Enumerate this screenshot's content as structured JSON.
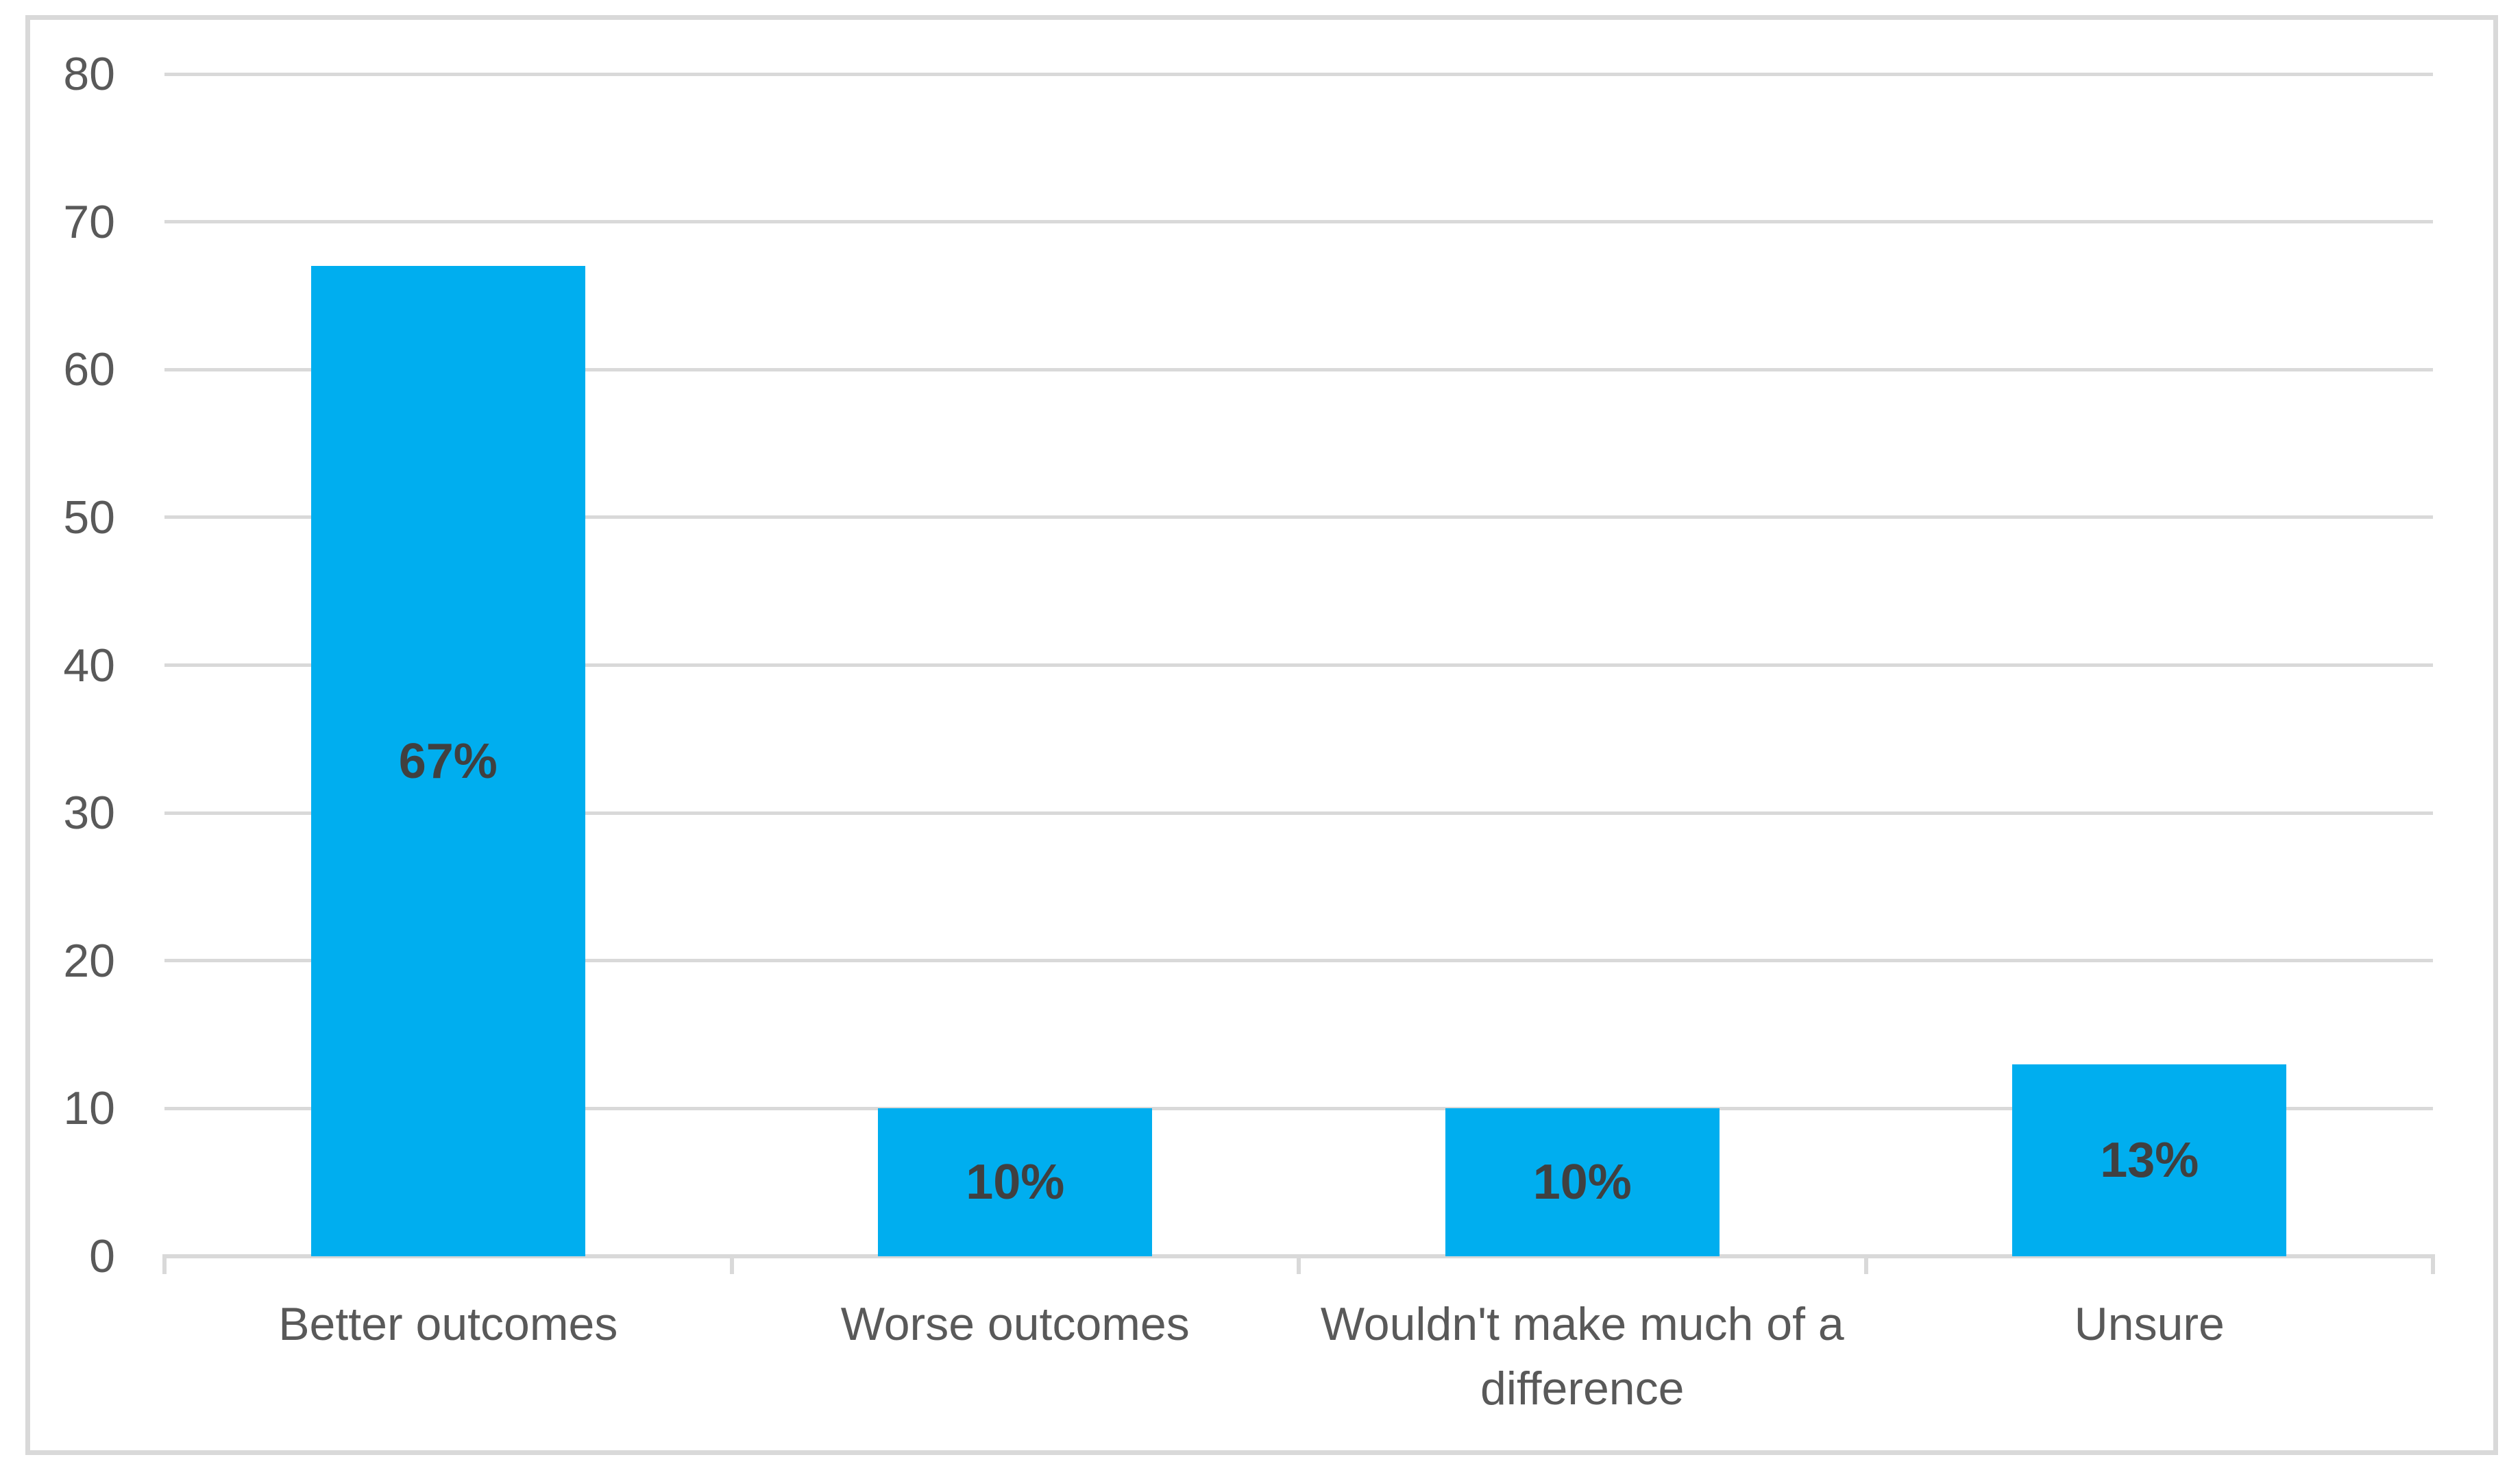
{
  "chart_data": {
    "type": "bar",
    "title": "",
    "xlabel": "",
    "ylabel": "",
    "categories": [
      "Better outcomes",
      "Worse outcomes",
      "Wouldn't make much of a difference",
      "Unsure"
    ],
    "values": [
      67,
      10,
      10,
      13
    ],
    "bar_labels": [
      "67%",
      "10%",
      "10%",
      "13%"
    ],
    "ylim": [
      0,
      80
    ],
    "yticks": [
      0,
      10,
      20,
      30,
      40,
      50,
      60,
      70,
      80
    ],
    "grid": true,
    "legend": false,
    "bar_color": "#00AEEF",
    "bar_label_color": "#404040",
    "axis_text_color": "#595959",
    "gridline_color": "#D9D9D9",
    "frame_border_color": "#D9D9D9",
    "background_color": "#FFFFFF"
  }
}
